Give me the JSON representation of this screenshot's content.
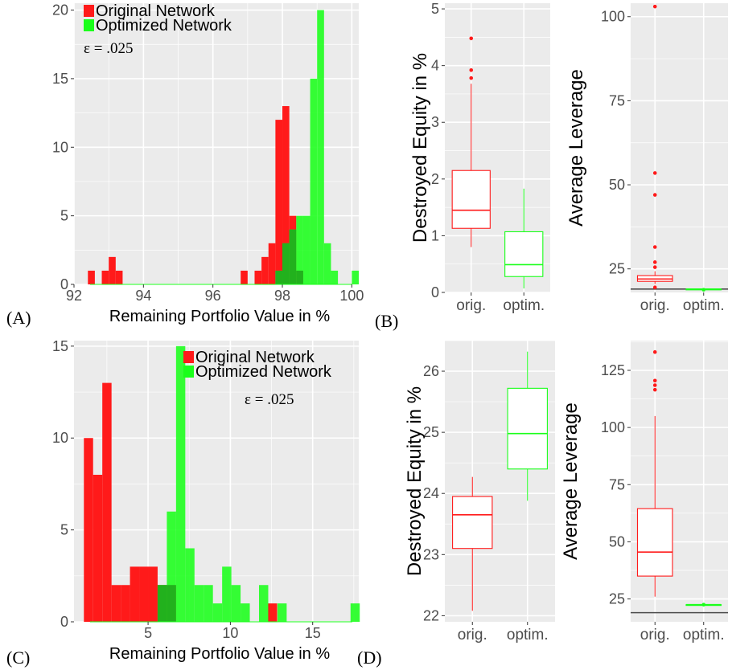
{
  "colors": {
    "original": "#ff1a1a",
    "optimized": "#1aff1a",
    "panel_bg": "#ebebeb",
    "grid": "#ffffff",
    "overlap": "#1fa81f",
    "baseline": "#4d4d4d"
  },
  "panel_labels": {
    "A": "(A)",
    "B": "(B)",
    "C": "(C)",
    "D": "(D)"
  },
  "chart_data": [
    {
      "panel": "A",
      "type": "bar",
      "subtype": "histogram",
      "xlabel": "Remaining Portfolio Value in %",
      "ylabel": "",
      "xlim": [
        92,
        100.2
      ],
      "ylim": [
        0,
        20.5
      ],
      "xticks": [
        "92",
        "94",
        "96",
        "98",
        "100"
      ],
      "yticks": [
        "0",
        "5",
        "10",
        "15",
        "20"
      ],
      "annotation": "ε = .025",
      "legend": [
        "Original Network",
        "Optimized Network"
      ],
      "legend_position": "top-left",
      "bin_width": 0.2,
      "series": [
        {
          "name": "Original Network",
          "color": "#ff1a1a",
          "bins": [
            [
              92.4,
              1
            ],
            [
              92.6,
              0
            ],
            [
              92.8,
              1
            ],
            [
              93.0,
              2
            ],
            [
              93.2,
              1
            ],
            [
              96.8,
              1
            ],
            [
              97.2,
              1
            ],
            [
              97.4,
              2
            ],
            [
              97.6,
              3
            ],
            [
              97.8,
              12
            ],
            [
              98.0,
              13
            ],
            [
              98.2,
              5
            ],
            [
              98.4,
              1
            ]
          ]
        },
        {
          "name": "Optimized Network",
          "color": "#1aff1a",
          "bins": [
            [
              97.8,
              1
            ],
            [
              98.0,
              3
            ],
            [
              98.2,
              4
            ],
            [
              98.4,
              5
            ],
            [
              98.6,
              5
            ],
            [
              98.8,
              15
            ],
            [
              99.0,
              20
            ],
            [
              99.2,
              3
            ],
            [
              99.4,
              1
            ],
            [
              100.0,
              1
            ]
          ]
        }
      ]
    },
    {
      "panel": "B-left",
      "type": "boxplot",
      "ylabel": "Destroyed Equity in %",
      "ylim": [
        0,
        5.1
      ],
      "yticks": [
        "0",
        "1",
        "2",
        "3",
        "4",
        "5"
      ],
      "categories": [
        "orig.",
        "optim."
      ],
      "boxes": [
        {
          "name": "orig.",
          "color": "#ff1a1a",
          "min": 0.8,
          "q1": 1.13,
          "median": 1.45,
          "q3": 2.15,
          "max": 3.68,
          "outliers": [
            3.78,
            3.92,
            4.48
          ]
        },
        {
          "name": "optim.",
          "color": "#1aff1a",
          "min": 0.07,
          "q1": 0.28,
          "median": 0.49,
          "q3": 1.07,
          "max": 1.83,
          "outliers": []
        }
      ]
    },
    {
      "panel": "B-right",
      "type": "boxplot",
      "ylabel": "Average Leverage",
      "ylim": [
        18,
        104
      ],
      "yticks": [
        "25",
        "50",
        "75",
        "100"
      ],
      "reference_line": 19,
      "categories": [
        "orig.",
        "optim."
      ],
      "boxes": [
        {
          "name": "orig.",
          "color": "#ff1a1a",
          "min": 20.5,
          "q1": 21.3,
          "median": 22,
          "q3": 23,
          "max": 24.3,
          "outliers": [
            19.5,
            25.5,
            27,
            31.5,
            47,
            53.5,
            103
          ]
        },
        {
          "name": "optim.",
          "color": "#1aff1a",
          "min": 19,
          "q1": 19,
          "median": 19,
          "q3": 19,
          "max": 19,
          "outliers": [
            18.8
          ]
        }
      ]
    },
    {
      "panel": "C",
      "type": "bar",
      "subtype": "histogram",
      "xlabel": "Remaining Portfolio Value in %",
      "ylabel": "",
      "xlim": [
        0.5,
        17.8
      ],
      "ylim": [
        0,
        15.3
      ],
      "xticks": [
        "5",
        "10",
        "15"
      ],
      "yticks": [
        "0",
        "5",
        "10",
        "15"
      ],
      "annotation": "ε = .025",
      "legend": [
        "Original Network",
        "Optimized Network"
      ],
      "legend_position": "top-right",
      "bin_width": 0.56,
      "series": [
        {
          "name": "Original Network",
          "color": "#ff1a1a",
          "bins": [
            [
              1.1,
              10
            ],
            [
              1.66,
              8
            ],
            [
              2.22,
              13
            ],
            [
              2.78,
              2
            ],
            [
              3.34,
              2
            ],
            [
              3.9,
              3
            ],
            [
              4.46,
              3
            ],
            [
              5.02,
              3
            ],
            [
              5.58,
              2
            ],
            [
              6.14,
              2
            ],
            [
              12.28,
              1
            ]
          ]
        },
        {
          "name": "Optimized Network",
          "color": "#1aff1a",
          "bins": [
            [
              5.58,
              2
            ],
            [
              6.14,
              6
            ],
            [
              6.7,
              15
            ],
            [
              7.26,
              4
            ],
            [
              7.82,
              2
            ],
            [
              8.38,
              2
            ],
            [
              8.94,
              1
            ],
            [
              9.5,
              3
            ],
            [
              10.06,
              2
            ],
            [
              10.62,
              1
            ],
            [
              11.74,
              2
            ],
            [
              12.86,
              1
            ],
            [
              17.3,
              1
            ]
          ]
        }
      ]
    },
    {
      "panel": "D-left",
      "type": "boxplot",
      "ylabel": "Destroyed Equity in %",
      "ylim": [
        21.9,
        26.5
      ],
      "yticks": [
        "22",
        "23",
        "24",
        "25",
        "26"
      ],
      "categories": [
        "orig.",
        "optim."
      ],
      "boxes": [
        {
          "name": "orig.",
          "color": "#ff1a1a",
          "min": 22.08,
          "q1": 23.1,
          "median": 23.65,
          "q3": 23.95,
          "max": 24.27,
          "outliers": []
        },
        {
          "name": "optim.",
          "color": "#1aff1a",
          "min": 23.88,
          "q1": 24.4,
          "median": 24.98,
          "q3": 25.72,
          "max": 26.32,
          "outliers": []
        }
      ]
    },
    {
      "panel": "D-right",
      "type": "boxplot",
      "ylabel": "Average Leverage",
      "ylim": [
        15,
        138
      ],
      "yticks": [
        "25",
        "50",
        "75",
        "100",
        "125"
      ],
      "reference_line": 19,
      "categories": [
        "orig.",
        "optim."
      ],
      "boxes": [
        {
          "name": "orig.",
          "color": "#ff1a1a",
          "min": 26,
          "q1": 35,
          "median": 45.5,
          "q3": 64.5,
          "max": 105,
          "outliers": [
            116.5,
            118.5,
            120.5,
            133
          ]
        },
        {
          "name": "optim.",
          "color": "#1aff1a",
          "min": 22.5,
          "q1": 22.5,
          "median": 22.5,
          "q3": 22.5,
          "max": 22.5,
          "outliers": [
            22.5
          ]
        }
      ]
    }
  ]
}
